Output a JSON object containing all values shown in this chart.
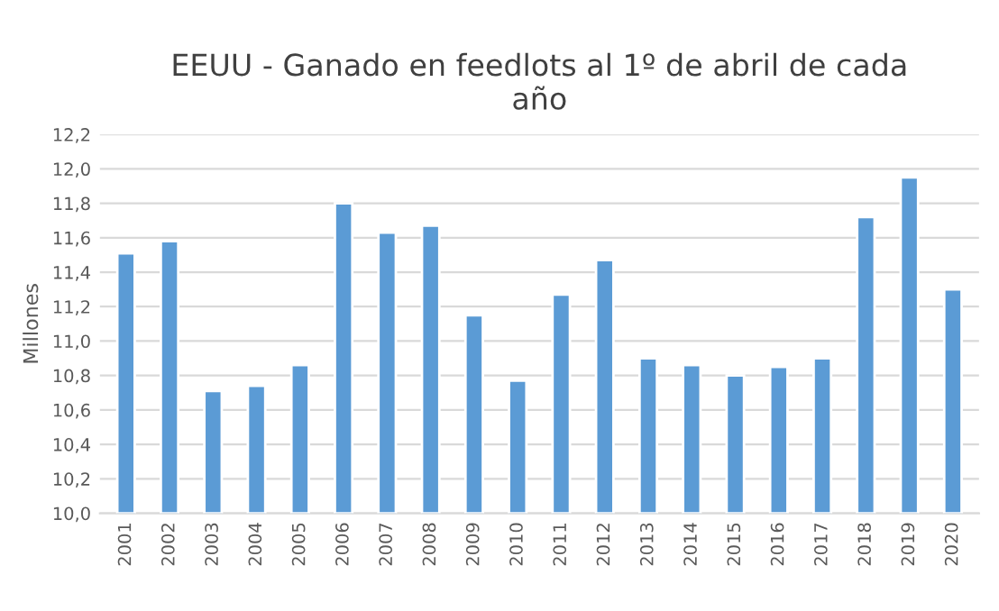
{
  "chart_data": {
    "type": "bar",
    "title": "EEUU - Ganado en feedlots al 1º de abril de cada\naño",
    "ylabel": "Millones",
    "categories": [
      "2001",
      "2002",
      "2003",
      "2004",
      "2005",
      "2006",
      "2007",
      "2008",
      "2009",
      "2010",
      "2011",
      "2012",
      "2013",
      "2014",
      "2015",
      "2016",
      "2017",
      "2018",
      "2019",
      "2020"
    ],
    "values": [
      11.51,
      11.58,
      10.71,
      10.74,
      10.86,
      11.8,
      11.63,
      11.67,
      11.15,
      10.77,
      11.27,
      11.47,
      10.9,
      10.86,
      10.8,
      10.85,
      10.9,
      11.72,
      11.95,
      11.3
    ],
    "color": "#5b9bd5",
    "ylim": [
      10.0,
      12.2
    ],
    "yticks": [
      {
        "value": 10.0,
        "label": "10,0"
      },
      {
        "value": 10.2,
        "label": "10,2"
      },
      {
        "value": 10.4,
        "label": "10,4"
      },
      {
        "value": 10.6,
        "label": "10,6"
      },
      {
        "value": 10.8,
        "label": "10,8"
      },
      {
        "value": 11.0,
        "label": "11,0"
      },
      {
        "value": 11.2,
        "label": "11,2"
      },
      {
        "value": 11.4,
        "label": "11,4"
      },
      {
        "value": 11.6,
        "label": "11,6"
      },
      {
        "value": 11.8,
        "label": "11,8"
      },
      {
        "value": 12.0,
        "label": "12,0"
      },
      {
        "value": 12.2,
        "label": "12,2"
      }
    ],
    "grid": "y"
  }
}
